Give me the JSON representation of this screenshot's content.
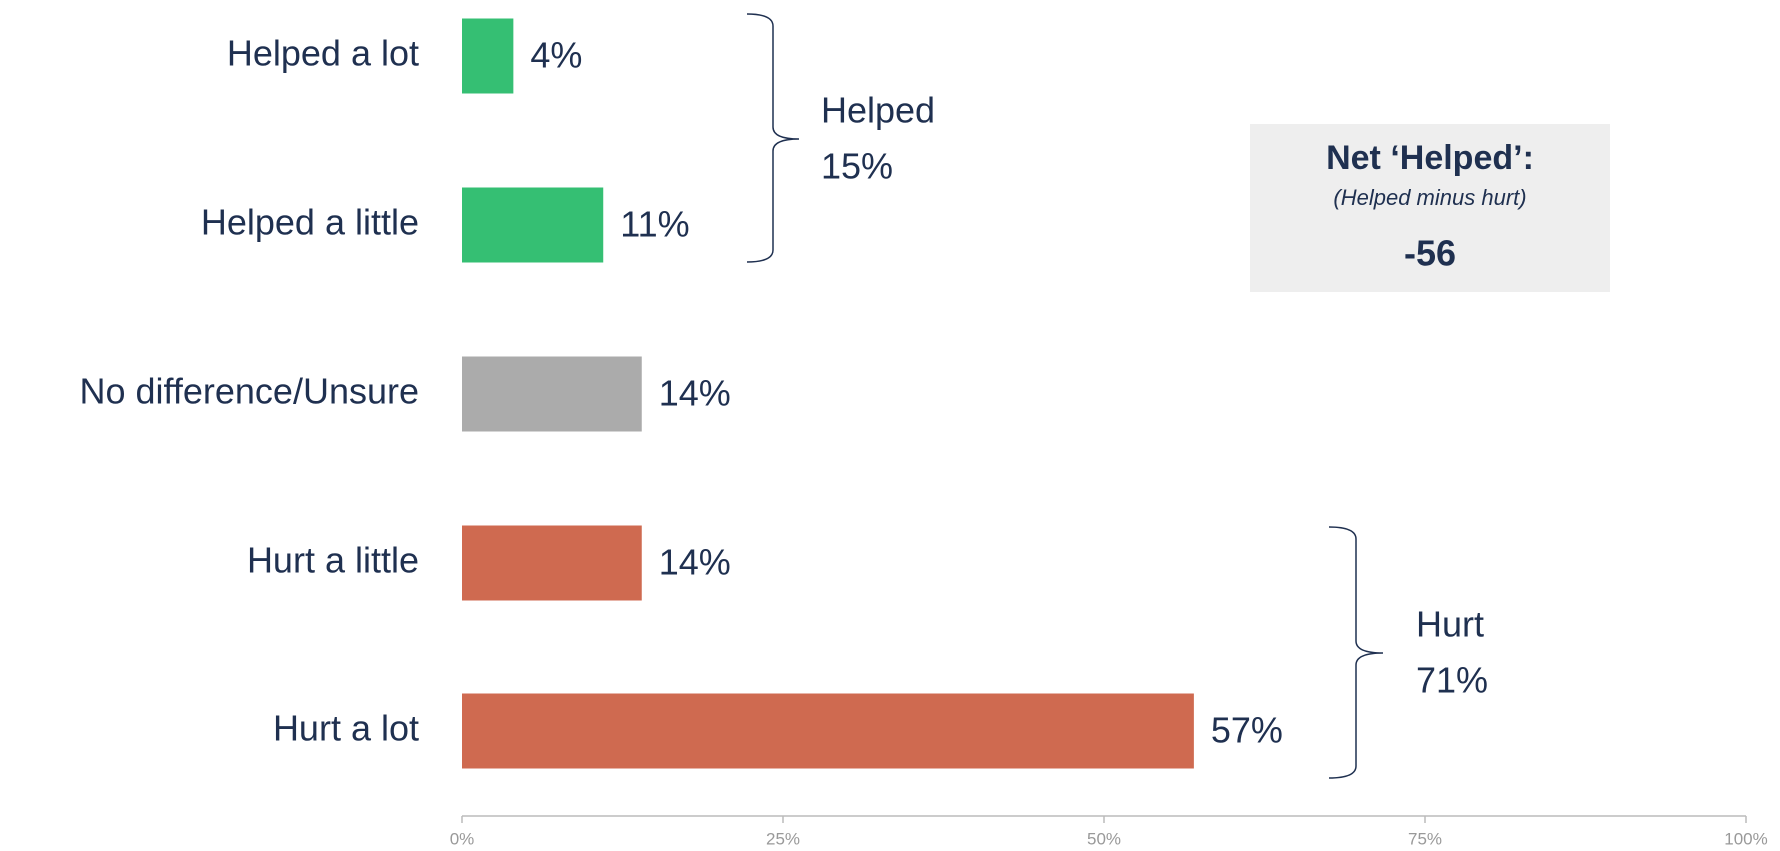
{
  "chart_data": {
    "type": "hbar",
    "categories": [
      "Helped a lot",
      "Helped a little",
      "No difference/Unsure",
      "Hurt a little",
      "Hurt a lot"
    ],
    "values": [
      4,
      11,
      14,
      14,
      57
    ],
    "value_labels": [
      "4%",
      "11%",
      "14%",
      "14%",
      "57%"
    ],
    "colors": [
      "#35bf73",
      "#35bf73",
      "#ababab",
      "#cf6a50",
      "#cf6a50"
    ],
    "xlim": [
      0,
      100
    ],
    "xticks": [
      {
        "value": 0,
        "label": "0%"
      },
      {
        "value": 25,
        "label": "25%"
      },
      {
        "value": 50,
        "label": "50%"
      },
      {
        "value": 75,
        "label": "75%"
      },
      {
        "value": 100,
        "label": "100%"
      }
    ],
    "groups": [
      {
        "name": "Helped",
        "value": 15,
        "value_label": "15%"
      },
      {
        "name": "Hurt",
        "value": 71,
        "value_label": "71%"
      }
    ],
    "net": {
      "title": "Net ‘Helped’:",
      "subtitle": "(Helped minus hurt)",
      "value": -56
    }
  }
}
